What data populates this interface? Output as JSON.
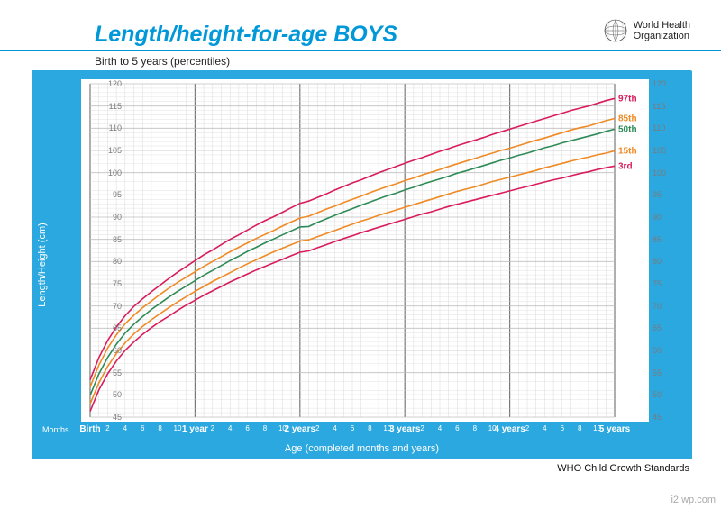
{
  "header": {
    "title": "Length/height-for-age BOYS",
    "subtitle": "Birth to 5 years (percentiles)",
    "who_line1": "World Health",
    "who_line2": "Organization"
  },
  "chart": {
    "type": "line",
    "ylabel": "Length/Height (cm)",
    "xlabel": "Age (completed months and years)",
    "months_corner": "Months",
    "ylim": [
      45,
      120
    ],
    "ytick_step": 5,
    "xdomain_months": [
      0,
      60
    ],
    "x_major_labels": [
      "Birth",
      "1 year",
      "2 years",
      "3 years",
      "4 years",
      "5 years"
    ],
    "x_minor_every": 2,
    "background_color": "#ffffff",
    "frame_color": "#2ca8e0",
    "grid_minor_color": "#d9d9d9",
    "grid_major_color": "#777777",
    "series": [
      {
        "label": "97th",
        "color": "#d91c5c",
        "values": [
          53.4,
          58.4,
          62.2,
          65.3,
          67.8,
          69.9,
          71.6,
          73.2,
          74.7,
          76.2,
          77.6,
          78.9,
          80.2,
          81.5,
          82.6,
          83.8,
          85.0,
          86.0,
          87.1,
          88.2,
          89.2,
          90.1,
          91.1,
          92.1,
          93.1,
          93.6,
          94.4,
          95.2,
          96.1,
          96.9,
          97.7,
          98.4,
          99.2,
          100.0,
          100.7,
          101.4,
          102.1,
          102.8,
          103.4,
          104.1,
          104.8,
          105.4,
          106.1,
          106.7,
          107.3,
          107.9,
          108.6,
          109.2,
          109.8,
          110.4,
          111.0,
          111.6,
          112.2,
          112.8,
          113.4,
          114.0,
          114.5,
          115.0,
          115.6,
          116.2,
          116.7
        ]
      },
      {
        "label": "85th",
        "color": "#f08a24",
        "values": [
          51.8,
          56.7,
          60.5,
          63.5,
          66.0,
          67.9,
          69.6,
          71.1,
          72.6,
          74.0,
          75.3,
          76.5,
          77.7,
          78.9,
          80.0,
          81.1,
          82.2,
          83.2,
          84.2,
          85.2,
          86.1,
          87.0,
          88.0,
          88.9,
          89.8,
          90.2,
          91.0,
          91.8,
          92.5,
          93.3,
          94.0,
          94.7,
          95.5,
          96.2,
          96.9,
          97.5,
          98.2,
          98.8,
          99.5,
          100.1,
          100.7,
          101.4,
          102.0,
          102.6,
          103.2,
          103.8,
          104.4,
          105.0,
          105.5,
          106.1,
          106.7,
          107.3,
          107.8,
          108.4,
          109.0,
          109.6,
          110.1,
          110.5,
          111.1,
          111.7,
          112.2
        ]
      },
      {
        "label": "50th",
        "color": "#2e8b57",
        "values": [
          49.9,
          54.7,
          58.4,
          61.4,
          63.9,
          65.9,
          67.6,
          69.2,
          70.6,
          72.0,
          73.3,
          74.5,
          75.7,
          76.9,
          78.0,
          79.1,
          80.2,
          81.2,
          82.3,
          83.2,
          84.2,
          85.1,
          86.0,
          86.9,
          87.8,
          87.9,
          88.8,
          89.6,
          90.4,
          91.2,
          91.9,
          92.7,
          93.4,
          94.1,
          94.8,
          95.4,
          96.1,
          96.7,
          97.4,
          98.0,
          98.6,
          99.2,
          99.9,
          100.4,
          101.0,
          101.6,
          102.2,
          102.8,
          103.3,
          103.9,
          104.4,
          105.0,
          105.6,
          106.1,
          106.7,
          107.2,
          107.7,
          108.2,
          108.7,
          109.3,
          109.8
        ]
      },
      {
        "label": "15th",
        "color": "#f08a24",
        "values": [
          48.0,
          52.7,
          56.4,
          59.3,
          61.7,
          63.7,
          65.4,
          66.9,
          68.3,
          69.6,
          70.9,
          72.1,
          73.3,
          74.4,
          75.5,
          76.5,
          77.5,
          78.5,
          79.5,
          80.4,
          81.3,
          82.2,
          83.0,
          83.8,
          84.6,
          84.9,
          85.6,
          86.3,
          87.0,
          87.7,
          88.4,
          89.1,
          89.7,
          90.4,
          91.0,
          91.6,
          92.2,
          92.8,
          93.4,
          94.0,
          94.6,
          95.2,
          95.8,
          96.3,
          96.8,
          97.4,
          98.0,
          98.5,
          99.0,
          99.5,
          100.0,
          100.5,
          101.1,
          101.6,
          102.1,
          102.6,
          103.1,
          103.5,
          104.0,
          104.4,
          104.9
        ]
      },
      {
        "label": "3rd",
        "color": "#d91c5c",
        "values": [
          46.3,
          51.1,
          54.7,
          57.6,
          60.0,
          61.9,
          63.6,
          65.1,
          66.5,
          67.7,
          69.0,
          70.2,
          71.3,
          72.4,
          73.4,
          74.4,
          75.4,
          76.3,
          77.2,
          78.1,
          78.9,
          79.7,
          80.5,
          81.3,
          82.1,
          82.4,
          83.1,
          83.8,
          84.5,
          85.2,
          85.8,
          86.5,
          87.1,
          87.7,
          88.3,
          88.9,
          89.5,
          90.1,
          90.7,
          91.2,
          91.8,
          92.4,
          92.9,
          93.4,
          93.9,
          94.4,
          94.9,
          95.4,
          95.9,
          96.4,
          96.9,
          97.4,
          97.9,
          98.4,
          98.8,
          99.3,
          99.8,
          100.2,
          100.7,
          101.1,
          101.5
        ]
      }
    ]
  },
  "footer": {
    "standards": "WHO Child Growth Standards",
    "watermark": "i2.wp.com"
  }
}
